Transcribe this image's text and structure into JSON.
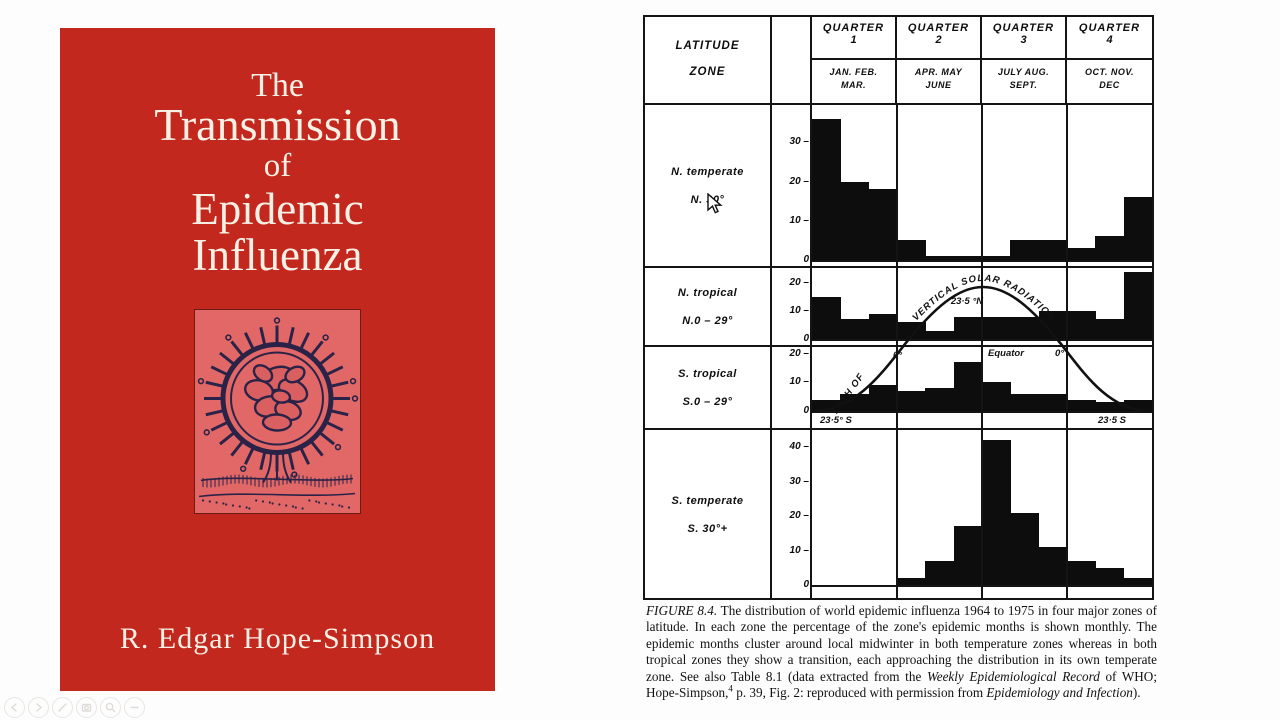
{
  "book": {
    "title_line1": "The",
    "title_line2": "Transmission",
    "title_line3": "of",
    "title_line4": "Epidemic",
    "title_line5": "Influenza",
    "author": "R. Edgar Hope-Simpson",
    "colors": {
      "cover_red": "#c2281e",
      "panel_pink": "#e26868",
      "ink": "#2b2347",
      "text_cream": "#f7f0e5"
    }
  },
  "figure": {
    "latitude_line1": "LATITUDE",
    "latitude_line2": "ZONE",
    "quarters": [
      {
        "label": "QUARTER",
        "number": "1",
        "months": [
          "JAN.  FEB.",
          "MAR."
        ]
      },
      {
        "label": "QUARTER",
        "number": "2",
        "months": [
          "APR.  MAY",
          "JUNE"
        ]
      },
      {
        "label": "QUARTER",
        "number": "3",
        "months": [
          "JULY  AUG.",
          "SEPT."
        ]
      },
      {
        "label": "QUARTER",
        "number": "4",
        "months": [
          "OCT.  NOV.",
          "DEC"
        ]
      }
    ]
  },
  "chart_data": {
    "type": "bar",
    "title": "Distribution of world epidemic influenza 1964 to 1975 in four major zones of latitude (percentage of each zone's epidemic months, monthly)",
    "categories": [
      "JAN.",
      "FEB.",
      "MAR.",
      "APR.",
      "MAY",
      "JUNE",
      "JULY",
      "AUG.",
      "SEPT.",
      "OCT.",
      "NOV.",
      "DEC"
    ],
    "grid": false,
    "zones": [
      {
        "label": "N. temperate",
        "sublabel": "N. 30°",
        "ticks": [
          30,
          20,
          10,
          0
        ],
        "ylim": [
          0,
          40
        ],
        "values": [
          36,
          20,
          18,
          5,
          1,
          1,
          1,
          5,
          5,
          3,
          6,
          16
        ]
      },
      {
        "label": "N. tropical",
        "sublabel": "N.0 – 29°",
        "ticks": [
          20,
          10,
          0
        ],
        "ylim": [
          0,
          26
        ],
        "values": [
          15,
          7,
          9,
          6,
          3,
          8,
          8,
          8,
          10,
          10,
          7,
          24
        ]
      },
      {
        "label": "S. tropical",
        "sublabel": "S.0 – 29°",
        "ticks": [
          20,
          10,
          0
        ],
        "ylim": [
          0,
          23
        ],
        "values": [
          4,
          6,
          9,
          7,
          8,
          17,
          10,
          6,
          6,
          4,
          3,
          4
        ]
      },
      {
        "label": "S. temperate",
        "sublabel": "S. 30°+",
        "ticks": [
          40,
          30,
          20,
          10,
          0
        ],
        "ylim": [
          0,
          45
        ],
        "values": [
          0,
          0,
          0,
          2,
          7,
          17,
          42,
          21,
          11,
          7,
          5,
          2
        ]
      }
    ],
    "annotations": {
      "path_of": "PATH OF",
      "vertical_solar": "VERTICAL  SOLAR  RADIATION",
      "lat_n": "23·5 °N",
      "deg0_left": "0°",
      "equator": "Equator",
      "deg0_right": "0°",
      "lat_s_left": "23·5° S",
      "lat_s_right": "23·5 S"
    }
  },
  "caption": {
    "segments": [
      {
        "text": "FIGURE 8.4.",
        "italic": true
      },
      {
        "text": " The distribution of world epidemic influenza 1964 to 1975 in four major zones of latitude. In each zone the percentage of the zone's epidemic months is shown monthly. The epidemic months cluster around local midwinter in both temperature zones whereas in both tropical zones they show a transition, each approaching the distribution in its own temperate zone. See also Table 8.1 (data extracted from the "
      },
      {
        "text": "Weekly Epidemiological Record",
        "italic": true
      },
      {
        "text": "  of WHO; Hope-Simpson,"
      },
      {
        "text": "4",
        "sup": true
      },
      {
        "text": " p. 39, Fig. 2: reproduced with permission from "
      },
      {
        "text": "Epidemiology and Infection",
        "italic": true
      },
      {
        "text": ")."
      }
    ]
  },
  "toolbar": {
    "icons": [
      "previous",
      "next",
      "pen",
      "camera",
      "zoom",
      "minus"
    ]
  }
}
